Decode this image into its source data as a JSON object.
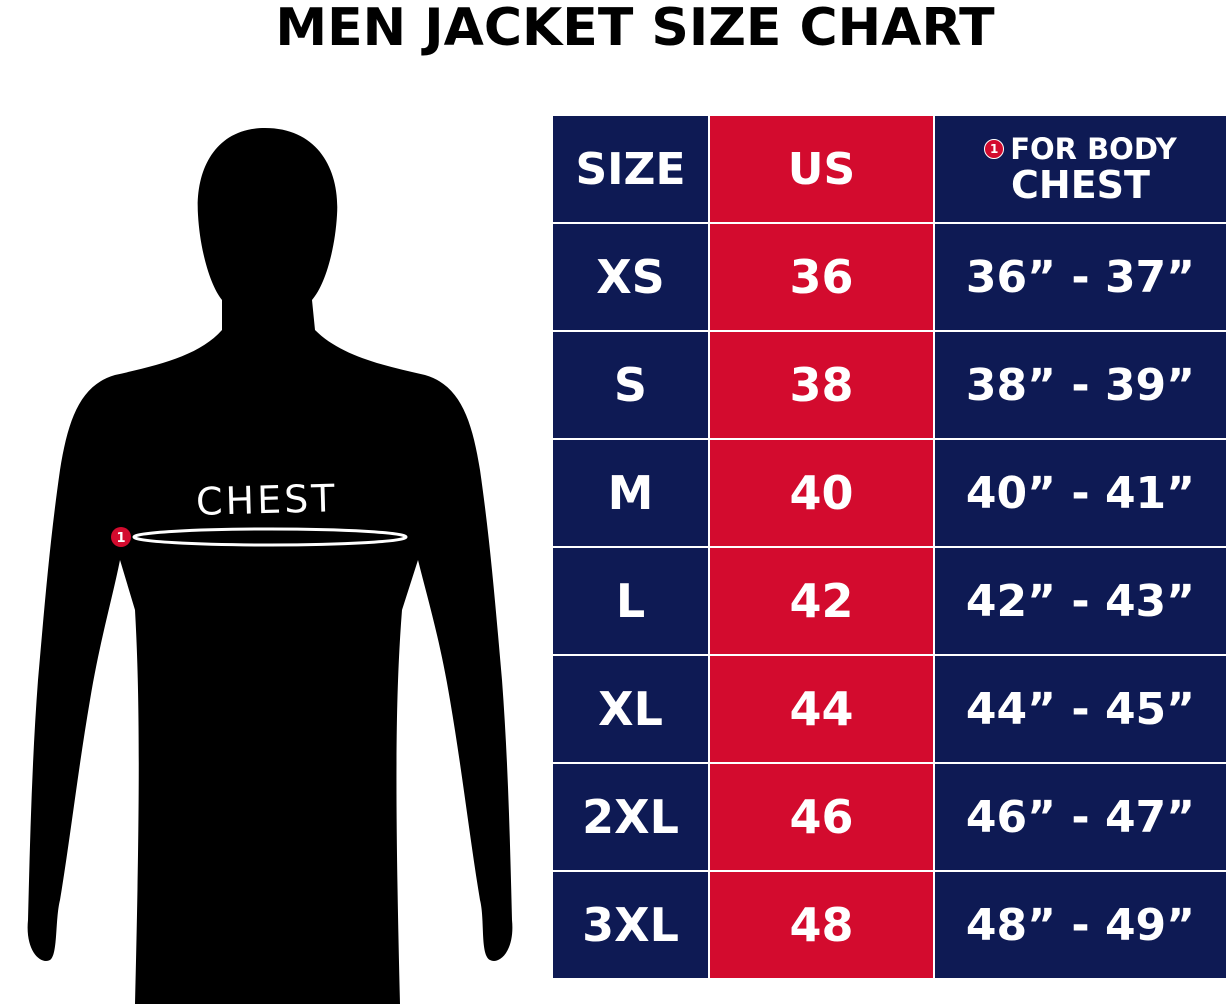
{
  "title": "MEN JACKET SIZE CHART",
  "figure": {
    "chest_label": "CHEST",
    "marker_number": "1"
  },
  "colors": {
    "navy": "#0e1a54",
    "red": "#d30b2e"
  },
  "table": {
    "headers": {
      "size": "SIZE",
      "us": "US",
      "chest_marker": "1",
      "chest_line1": "FOR BODY",
      "chest_line2": "CHEST"
    },
    "rows": [
      {
        "size": "XS",
        "us": "36",
        "chest": "36” - 37”"
      },
      {
        "size": "S",
        "us": "38",
        "chest": "38” - 39”"
      },
      {
        "size": "M",
        "us": "40",
        "chest": "40” - 41”"
      },
      {
        "size": "L",
        "us": "42",
        "chest": "42” - 43”"
      },
      {
        "size": "XL",
        "us": "44",
        "chest": "44” - 45”"
      },
      {
        "size": "2XL",
        "us": "46",
        "chest": "46” - 47”"
      },
      {
        "size": "3XL",
        "us": "48",
        "chest": "48” - 49”"
      }
    ]
  }
}
